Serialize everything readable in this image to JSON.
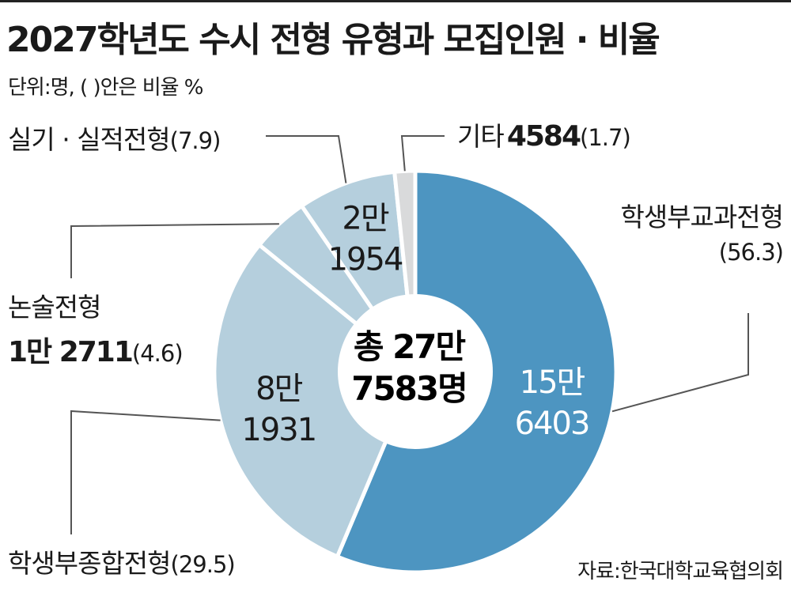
{
  "title": "2027학년도 수시 전형 유형과 모집인원 · 비율",
  "unit_note": "단위:명, (   )안은 비율 %",
  "source": "자료:한국대학교육협의회",
  "colors": {
    "primary": "#4d95c1",
    "light": "#b5cfdd",
    "other": "#d9dadb",
    "line": "#555555"
  },
  "chart_data": {
    "type": "pie",
    "donut": true,
    "title": "2027학년도 수시 전형 유형과 모집인원 · 비율",
    "center_label": {
      "line1": "총 27만",
      "line2": "7583명"
    },
    "total": 277583,
    "slices": [
      {
        "name": "학생부교과전형",
        "value": 156403,
        "percent": 56.3,
        "value_label_1": "15만",
        "value_label_2": "6403",
        "color": "#4d95c1"
      },
      {
        "name": "학생부종합전형",
        "value": 81931,
        "percent": 29.5,
        "value_label_1": "8만",
        "value_label_2": "1931",
        "color": "#b5cfdd"
      },
      {
        "name": "논술전형",
        "value": 12711,
        "percent": 4.6,
        "value_label": "1만 2711",
        "color": "#b5cfdd"
      },
      {
        "name": "실기 · 실적전형",
        "value": 21954,
        "percent": 7.9,
        "value_label_1": "2만",
        "value_label_2": "1954",
        "color": "#b5cfdd"
      },
      {
        "name": "기타",
        "value": 4584,
        "percent": 1.7,
        "value_label": "4584",
        "color": "#d9dadb"
      }
    ]
  },
  "labels": {
    "gyogwa_name": "학생부교과전형",
    "gyogwa_pct": "(56.3)",
    "jonghap_name": "학생부종합전형",
    "jonghap_pct": "(29.5)",
    "nonsul_name": "논술전형",
    "nonsul_value": "1만 2711",
    "nonsul_pct": "(4.6)",
    "silgi_name": "실기 · 실적전형",
    "silgi_pct": "(7.9)",
    "gita_name": "기타",
    "gita_value": "4584",
    "gita_pct": "(1.7)"
  }
}
